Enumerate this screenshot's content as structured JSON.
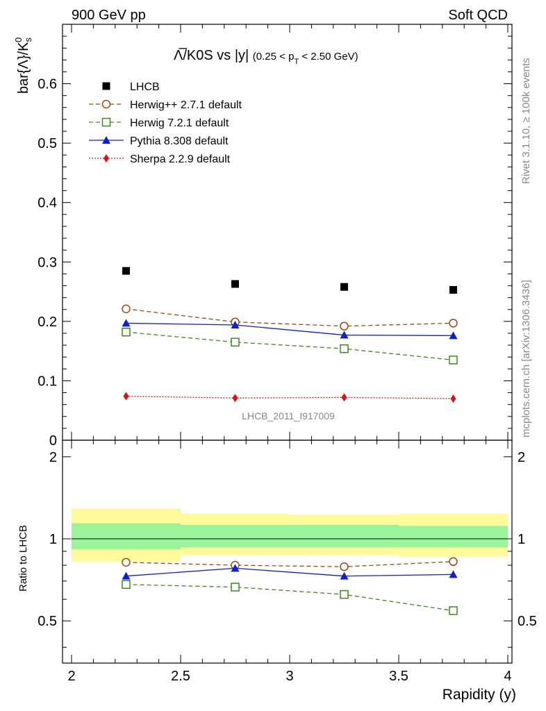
{
  "header": {
    "left": "900 GeV pp",
    "right": "Soft QCD"
  },
  "side": {
    "rivet": "Rivet 3.1.10, ≥ 100k events",
    "mcplots": "mcplots.cern.ch [arXiv:1306.3436]"
  },
  "chart_data": {
    "type": "line",
    "title": "Λ̅/K0S vs |y|",
    "title_cut": "(0.25 < p",
    "title_cut_sub": "T",
    "title_cut_end": " < 2.50 GeV)",
    "ylabel_main": "bar{Λ}/K",
    "ylabel_sub": "s",
    "ylabel_sup": "0",
    "ylabel_ratio": "Ratio to LHCB",
    "xlabel": "Rapidity (y)",
    "analysis_id": "LHCB_2011_I917009",
    "xlim": [
      2,
      4
    ],
    "ylim_main": [
      0,
      0.7
    ],
    "ylim_ratio": [
      0.35,
      2.3
    ],
    "x_ticks": [
      "2",
      "2.5",
      "3",
      "3.5",
      "4"
    ],
    "y_ticks_main": [
      "0",
      "0.1",
      "0.2",
      "0.3",
      "0.4",
      "0.5",
      "0.6"
    ],
    "y_ticks_ratio": [
      "0.5",
      "1",
      "2"
    ],
    "bins": [
      [
        2.0,
        2.5
      ],
      [
        2.5,
        3.0
      ],
      [
        3.0,
        3.5
      ],
      [
        3.5,
        4.0
      ]
    ],
    "x": [
      2.25,
      2.75,
      3.25,
      3.75
    ],
    "data": {
      "name": "LHCB",
      "values": [
        0.285,
        0.263,
        0.258,
        0.253
      ],
      "band_inner": [
        [
          0.915,
          1.14
        ],
        [
          0.93,
          1.125
        ],
        [
          0.93,
          1.125
        ],
        [
          0.93,
          1.115
        ]
      ],
      "band_outer": [
        [
          0.825,
          1.29
        ],
        [
          0.87,
          1.235
        ],
        [
          0.87,
          1.225
        ],
        [
          0.86,
          1.235
        ]
      ]
    },
    "series": [
      {
        "name": "Herwig++ 2.7.1 default",
        "color": "#9c4a0a",
        "dash": "6,4",
        "marker": "circle",
        "values": [
          0.221,
          0.199,
          0.192,
          0.197
        ],
        "ratio": [
          0.82,
          0.8,
          0.79,
          0.825
        ]
      },
      {
        "name": "Herwig 7.2.1 default",
        "color": "#3a8a13",
        "dash": "6,4",
        "marker": "square",
        "values": [
          0.182,
          0.165,
          0.154,
          0.135
        ],
        "ratio": [
          0.68,
          0.665,
          0.625,
          0.545
        ]
      },
      {
        "name": "Pythia 8.308 default",
        "color": "#0a1ee0",
        "dash": "",
        "marker": "triangle",
        "values": [
          0.197,
          0.194,
          0.177,
          0.176
        ],
        "ratio": [
          0.73,
          0.78,
          0.73,
          0.74
        ]
      },
      {
        "name": "Sherpa 2.2.9 default",
        "color": "#e01010",
        "dash": "2,2",
        "marker": "diamond",
        "values": [
          0.074,
          0.071,
          0.072,
          0.07
        ],
        "ratio": []
      }
    ]
  }
}
